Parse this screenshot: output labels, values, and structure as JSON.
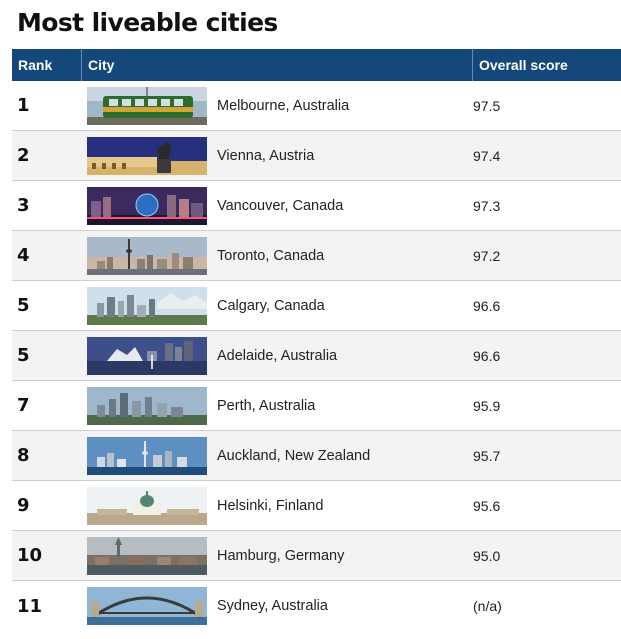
{
  "title": "Most liveable cities",
  "columns": {
    "rank": "Rank",
    "city": "City",
    "score": "Overall score"
  },
  "rows": [
    {
      "rank": "1",
      "city": "Melbourne, Australia",
      "score": "97.5",
      "image": "melbourne-tram"
    },
    {
      "rank": "2",
      "city": "Vienna, Austria",
      "score": "97.4",
      "image": "vienna-statue"
    },
    {
      "rank": "3",
      "city": "Vancouver, Canada",
      "score": "97.3",
      "image": "vancouver-night"
    },
    {
      "rank": "4",
      "city": "Toronto, Canada",
      "score": "97.2",
      "image": "toronto-skyline"
    },
    {
      "rank": "5",
      "city": "Calgary, Canada",
      "score": "96.6",
      "image": "calgary-skyline"
    },
    {
      "rank": "5",
      "city": "Adelaide, Australia",
      "score": "96.6",
      "image": "adelaide-river"
    },
    {
      "rank": "7",
      "city": "Perth, Australia",
      "score": "95.9",
      "image": "perth-skyline"
    },
    {
      "rank": "8",
      "city": "Auckland, New Zealand",
      "score": "95.7",
      "image": "auckland-tower"
    },
    {
      "rank": "9",
      "city": "Helsinki, Finland",
      "score": "95.6",
      "image": "helsinki-cathedral"
    },
    {
      "rank": "10",
      "city": "Hamburg, Germany",
      "score": "95.0",
      "image": "hamburg-city"
    },
    {
      "rank": "11",
      "city": "Sydney, Australia",
      "score": "(n/a)",
      "image": "sydney-bridge"
    }
  ]
}
